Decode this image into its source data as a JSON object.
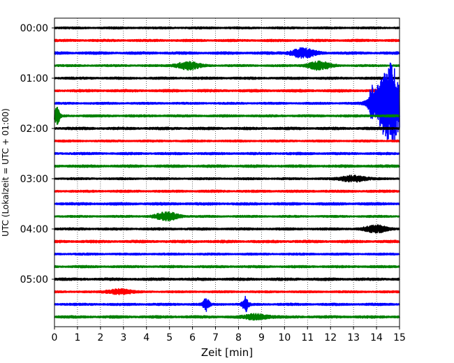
{
  "chart_data": {
    "type": "line",
    "title": "",
    "xlabel": "Zeit  [min]",
    "ylabel": "UTC (Lokalzeit = UTC + 01:00)",
    "xlim": [
      0,
      15
    ],
    "x_ticks": [
      0,
      1,
      2,
      3,
      4,
      5,
      6,
      7,
      8,
      9,
      10,
      11,
      12,
      13,
      14,
      15
    ],
    "y_tick_labels": [
      "00:00",
      "01:00",
      "02:00",
      "03:00",
      "04:00",
      "05:00"
    ],
    "y_tick_trace_index": [
      0,
      4,
      8,
      12,
      16,
      20
    ],
    "trace_interval_min": 15,
    "trace_count": 24,
    "trace_colors": [
      "#000000",
      "#ff0000",
      "#0000ff",
      "#008000"
    ],
    "grid": "vertical-dotted",
    "events": [
      {
        "trace": 2,
        "time_min": 10.8,
        "amp": 0.35
      },
      {
        "trace": 3,
        "time_min": 5.8,
        "amp": 0.3
      },
      {
        "trace": 3,
        "time_min": 11.5,
        "amp": 0.3
      },
      {
        "trace": 6,
        "time_min": 13.8,
        "amp": 0.9
      },
      {
        "trace": 6,
        "time_min": 14.6,
        "amp": 3.2
      },
      {
        "trace": 7,
        "time_min": 0.1,
        "amp": 0.7
      },
      {
        "trace": 12,
        "time_min": 13.0,
        "amp": 0.25
      },
      {
        "trace": 15,
        "time_min": 4.9,
        "amp": 0.3
      },
      {
        "trace": 16,
        "time_min": 14.0,
        "amp": 0.25
      },
      {
        "trace": 21,
        "time_min": 2.8,
        "amp": 0.2
      },
      {
        "trace": 22,
        "time_min": 6.6,
        "amp": 0.5
      },
      {
        "trace": 22,
        "time_min": 8.3,
        "amp": 0.55
      },
      {
        "trace": 23,
        "time_min": 8.8,
        "amp": 0.2
      }
    ]
  }
}
